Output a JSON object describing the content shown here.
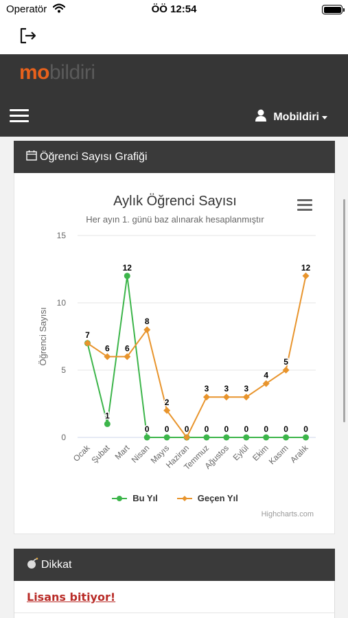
{
  "status_bar": {
    "carrier": "Operatör",
    "time": "ÖÖ 12:54"
  },
  "brand": {
    "part1": "mo",
    "part2": "bildiri"
  },
  "navbar": {
    "user_label": "Mobildiri"
  },
  "chart_panel": {
    "title": "Öğrenci Sayısı Grafiği"
  },
  "warning_panel": {
    "title": "Dikkat",
    "link_text": "Lisans bitiyor!"
  },
  "colors": {
    "accent_orange": "#e8611c",
    "series_green": "#3cb54a",
    "series_orange": "#e8942c",
    "dark_header": "#363636",
    "link_red": "#b92c28"
  },
  "chart_data": {
    "type": "line",
    "title": "Aylık Öğrenci Sayısı",
    "subtitle": "Her ayın 1. günü baz alınarak hesaplanmıştır",
    "ylabel": "Öğrenci Sayısı",
    "xlabel": "",
    "ylim": [
      0,
      15
    ],
    "yticks": [
      0,
      5,
      10,
      15
    ],
    "categories": [
      "Ocak",
      "Şubat",
      "Mart",
      "Nisan",
      "Mayıs",
      "Haziran",
      "Temmuz",
      "Ağustos",
      "Eylül",
      "Ekim",
      "Kasım",
      "Aralık"
    ],
    "series": [
      {
        "name": "Bu Yıl",
        "color": "#3cb54a",
        "marker": "circle",
        "values": [
          7,
          1,
          12,
          0,
          0,
          0,
          0,
          0,
          0,
          0,
          0,
          0
        ]
      },
      {
        "name": "Geçen Yıl",
        "color": "#e8942c",
        "marker": "diamond",
        "values": [
          7,
          6,
          6,
          8,
          2,
          0,
          3,
          3,
          3,
          4,
          5,
          12
        ]
      }
    ],
    "data_labels": {
      "Bu Yıl": [
        "7",
        "1",
        "12",
        "0",
        "0",
        "0",
        "0",
        "0",
        "0",
        "0",
        "0",
        "0"
      ],
      "Geçen Yıl": [
        "",
        "6",
        "6",
        "8",
        "2",
        "",
        "3",
        "3",
        "3",
        "4",
        "5",
        "12"
      ]
    },
    "grid": true,
    "legend": "bottom-center",
    "credits": "Highcharts.com"
  }
}
